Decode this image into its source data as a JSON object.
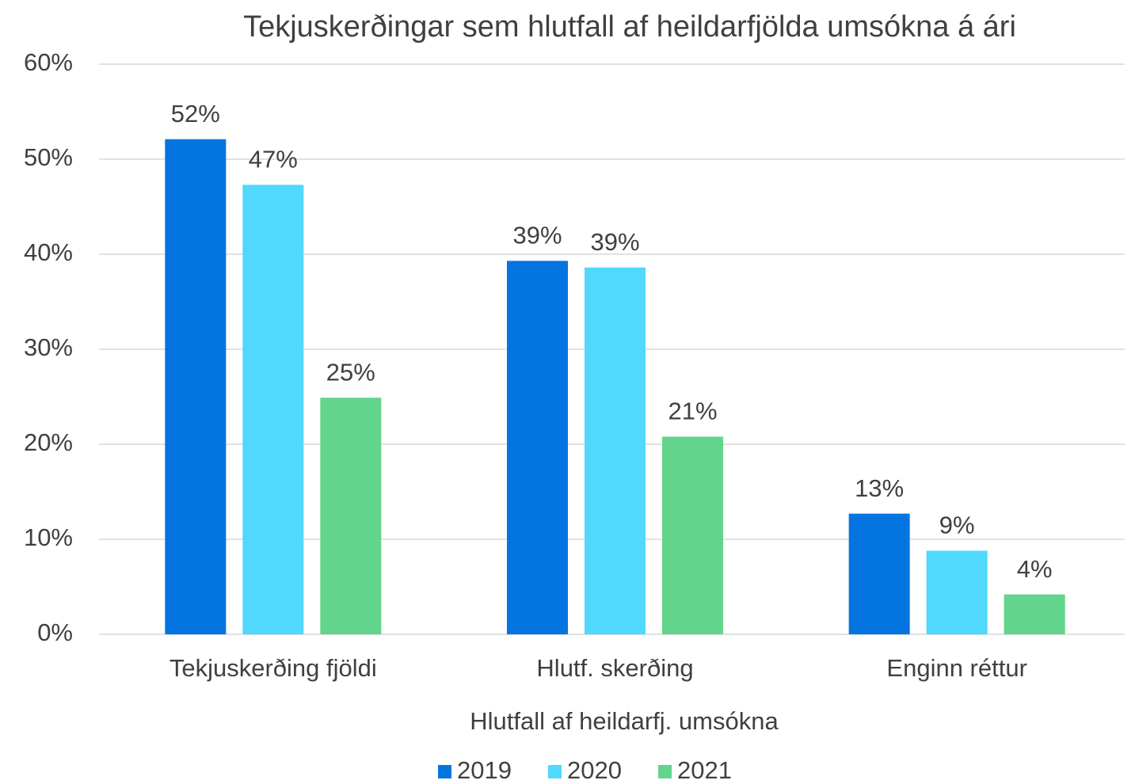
{
  "chart_data": {
    "type": "bar",
    "title": "Tekjuskerðingar sem hlutfall af heildarfjölda umsókna á ári",
    "x_label": "Hlutfall af heildarfj. umsókna",
    "categories": [
      "Tekjuskerðing fjöldi",
      "Hlutf. skerðing",
      "Enginn réttur"
    ],
    "series": [
      {
        "name": "2019",
        "color": "#0474e0",
        "values": [
          52.1,
          39.3,
          12.7
        ],
        "value_labels": [
          "52%",
          "39%",
          "13%"
        ]
      },
      {
        "name": "2020",
        "color": "#50d8fd",
        "values": [
          47.3,
          38.6,
          8.8
        ],
        "value_labels": [
          "47%",
          "39%",
          "9%"
        ]
      },
      {
        "name": "2021",
        "color": "#63d48c",
        "values": [
          24.9,
          20.8,
          4.2
        ],
        "value_labels": [
          "25%",
          "21%",
          "4%"
        ]
      }
    ],
    "ylim": [
      0,
      60
    ],
    "yticks": [
      {
        "value": 0,
        "label": "0%"
      },
      {
        "value": 10,
        "label": "10%"
      },
      {
        "value": 20,
        "label": "20%"
      },
      {
        "value": 30,
        "label": "30%"
      },
      {
        "value": 40,
        "label": "40%"
      },
      {
        "value": 50,
        "label": "50%"
      },
      {
        "value": 60,
        "label": "60%"
      }
    ],
    "grid": true,
    "legend": "bottom"
  }
}
